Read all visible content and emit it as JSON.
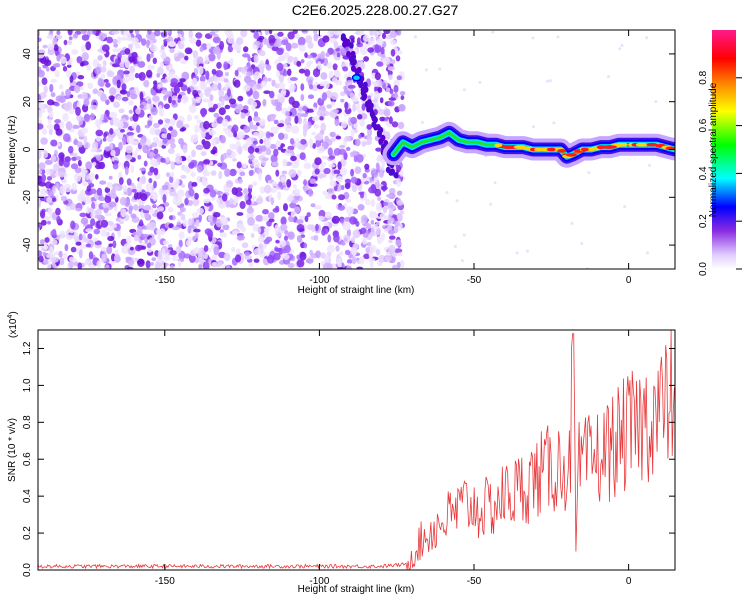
{
  "title": "C2E6.2025.228.00.27.G27",
  "chart_data": [
    {
      "type": "heatmap",
      "xlabel": "Height of straight line (km)",
      "ylabel": "Frequency (Hz)",
      "xlim": [
        -191,
        15
      ],
      "ylim": [
        -50,
        50
      ],
      "xticks": [
        -150,
        -100,
        -50,
        0
      ],
      "xtick_labels": [
        "-150",
        "-100",
        "-50",
        "0"
      ],
      "yticks": [
        -40,
        -20,
        0,
        20,
        40
      ],
      "ytick_labels": [
        "-40",
        "-20",
        "0",
        "20",
        "40"
      ],
      "noise_region_x": [
        -191,
        -74
      ],
      "signal_ridge": {
        "x": [
          -76,
          -73,
          -70,
          -67,
          -64,
          -61,
          -58,
          -55,
          -52,
          -49,
          -46,
          -43,
          -40,
          -37,
          -34,
          -31,
          -28,
          -25,
          -22,
          -20,
          -18,
          -15,
          -12,
          -9,
          -6,
          -3,
          0,
          3,
          6,
          9,
          12,
          15
        ],
        "y": [
          -2,
          3,
          1,
          3,
          4,
          5,
          7,
          4,
          3,
          3,
          2,
          2,
          1,
          1,
          1,
          0,
          0,
          0,
          0,
          -3,
          -2,
          0,
          0,
          1,
          1,
          2,
          2,
          2,
          2,
          2,
          1,
          0
        ]
      },
      "colorbar": {
        "label": "Normalized spectral amplitude",
        "range": [
          0,
          1
        ],
        "ticks": [
          0.0,
          0.2,
          0.4,
          0.6,
          0.8
        ],
        "tick_labels": [
          "0.0",
          "0.2",
          "0.4",
          "0.6",
          "0.8"
        ],
        "colors": [
          "#e8d8ff",
          "#8a2be2",
          "#0000ff",
          "#00ffff",
          "#00ff00",
          "#ffff00",
          "#ff8000",
          "#ff0000",
          "#ff1493"
        ]
      }
    },
    {
      "type": "line",
      "xlabel": "Height of straight line (km)",
      "ylabel": "SNR (10 * v/v)",
      "yscale_label_base": "(x10",
      "yscale_label_exp": "4",
      "yscale_label_close": ")",
      "xlim": [
        -191,
        15
      ],
      "ylim": [
        0,
        1.3
      ],
      "xticks": [
        -150,
        -100,
        -50,
        0
      ],
      "xtick_labels": [
        "-150",
        "-100",
        "-50",
        "0"
      ],
      "yticks": [
        0.0,
        0.2,
        0.4,
        0.6,
        0.8,
        1.0,
        1.2
      ],
      "ytick_labels": [
        "0.0",
        "0.2",
        "0.4",
        "0.6",
        "0.8",
        "1.0",
        "1.2"
      ],
      "series_color": "#e8383b",
      "series": [
        {
          "x": [
            -191,
            -170,
            -150,
            -130,
            -110,
            -90,
            -80,
            -72,
            -68,
            -64,
            -60,
            -56,
            -52,
            -48,
            -44,
            -40,
            -36,
            -32,
            -28,
            -24,
            -21,
            -19,
            -18,
            -17,
            -16,
            -12,
            -8,
            -4,
            0,
            4,
            8,
            12,
            15
          ],
          "y": [
            0.02,
            0.02,
            0.02,
            0.02,
            0.02,
            0.02,
            0.02,
            0.03,
            0.15,
            0.22,
            0.28,
            0.33,
            0.38,
            0.34,
            0.36,
            0.42,
            0.45,
            0.5,
            0.55,
            0.58,
            0.6,
            0.55,
            1.28,
            0.1,
            0.58,
            0.62,
            0.66,
            0.72,
            0.78,
            0.82,
            0.88,
            0.92,
            1.0
          ]
        }
      ]
    }
  ]
}
